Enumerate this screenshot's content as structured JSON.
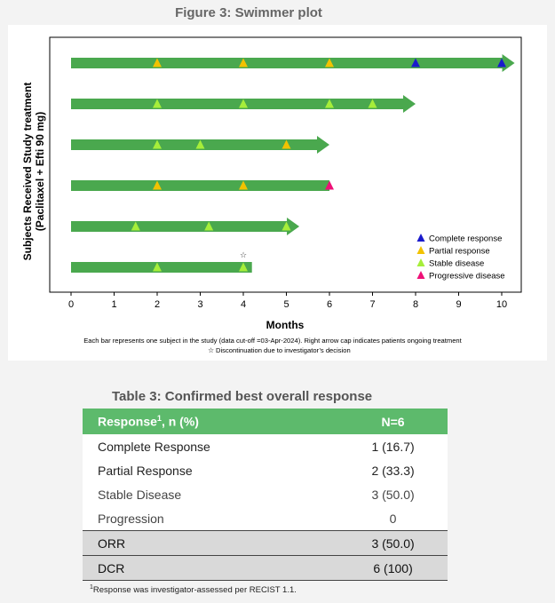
{
  "figure": {
    "title": "Figure 3: Swimmer plot"
  },
  "chart_data": {
    "type": "swimmer",
    "xlabel": "Months",
    "ylabel_line1": "Subjects Received Study treatment",
    "ylabel_line2": "(Paclitaxel + Efti 90 mg)",
    "xlim": [
      0,
      10
    ],
    "xticks": [
      0,
      1,
      2,
      3,
      4,
      5,
      6,
      7,
      8,
      9,
      10
    ],
    "subjects": [
      {
        "end": 10.3,
        "ongoing": true,
        "events": [
          {
            "t": 2,
            "type": "partial"
          },
          {
            "t": 4,
            "type": "partial"
          },
          {
            "t": 6,
            "type": "partial"
          },
          {
            "t": 8,
            "type": "complete"
          },
          {
            "t": 10,
            "type": "complete"
          }
        ]
      },
      {
        "end": 8.0,
        "ongoing": true,
        "events": [
          {
            "t": 2,
            "type": "stable"
          },
          {
            "t": 4,
            "type": "stable"
          },
          {
            "t": 6,
            "type": "stable"
          },
          {
            "t": 7,
            "type": "stable"
          }
        ]
      },
      {
        "end": 6.0,
        "ongoing": true,
        "events": [
          {
            "t": 2,
            "type": "stable"
          },
          {
            "t": 3,
            "type": "stable"
          },
          {
            "t": 5,
            "type": "partial"
          }
        ]
      },
      {
        "end": 6.0,
        "ongoing": false,
        "events": [
          {
            "t": 2,
            "type": "partial"
          },
          {
            "t": 4,
            "type": "partial"
          },
          {
            "t": 6,
            "type": "progressive"
          }
        ]
      },
      {
        "end": 5.3,
        "ongoing": true,
        "events": [
          {
            "t": 1.5,
            "type": "stable"
          },
          {
            "t": 3.2,
            "type": "stable"
          },
          {
            "t": 5,
            "type": "stable"
          }
        ]
      },
      {
        "end": 4.2,
        "ongoing": false,
        "discontinued_at": 4.0,
        "events": [
          {
            "t": 2,
            "type": "stable"
          },
          {
            "t": 4,
            "type": "stable"
          }
        ]
      }
    ],
    "legend_position": "bottom-right",
    "legend": [
      {
        "key": "complete",
        "label": "Complete response",
        "color": "#1a1acc"
      },
      {
        "key": "partial",
        "label": "Partial response",
        "color": "#f2c200"
      },
      {
        "key": "stable",
        "label": "Stable disease",
        "color": "#a6ee3a"
      },
      {
        "key": "progressive",
        "label": "Progressive disease",
        "color": "#ee1077"
      }
    ],
    "bar_color": "#4aa84e",
    "note_line1": "Each bar represents one subject in the study (data cut-off =03-Apr-2024). Right arrow cap indicates patients ongoing treatment",
    "note_line2": "Discontinuation due to investigator’s decision",
    "note_symbol": "☆"
  },
  "table": {
    "title": "Table 3: Confirmed best overall response",
    "header_label": "Response",
    "header_sup": "1",
    "header_suffix": ", n (%)",
    "header_n": "N=6",
    "rows": [
      {
        "label": "Complete Response",
        "value": "1 (16.7)"
      },
      {
        "label": "Partial Response",
        "value": "2 (33.3)"
      },
      {
        "label": "Stable Disease",
        "value": "3 (50.0)"
      },
      {
        "label": "Progression",
        "value": "0"
      }
    ],
    "summary": [
      {
        "label": "ORR",
        "value": "3 (50.0)"
      },
      {
        "label": "DCR",
        "value": "6 (100)"
      }
    ],
    "footnote_sup": "1",
    "footnote": "Response was investigator-assessed per RECIST 1.1."
  }
}
